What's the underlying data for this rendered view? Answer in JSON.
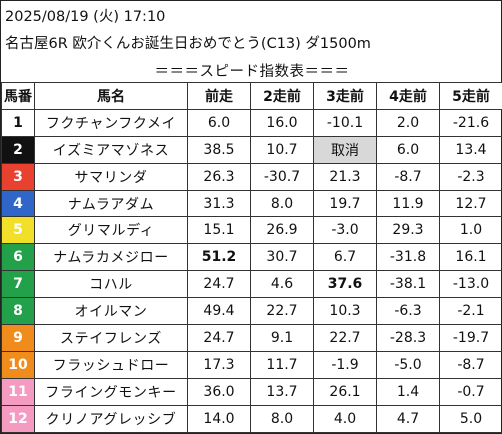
{
  "header": {
    "date_line": "2025/08/19 (火) 17:10",
    "race_line": "名古屋6R 欧介くんお誕生日おめでとう(C13) ダ1500m",
    "subtitle": "＝＝＝スピード指数表＝＝＝"
  },
  "columns": [
    "馬番",
    "馬名",
    "前走",
    "2走前",
    "3走前",
    "4走前",
    "5走前"
  ],
  "colors": {
    "frame_1": "#ffffff",
    "frame_2": "#111111",
    "frame_3": "#e8412f",
    "frame_4": "#2f66c8",
    "frame_5": "#f1df2a",
    "frame_6": "#23a04a",
    "frame_7": "#f08c1c",
    "frame_8": "#f59ac0",
    "highlight_red": "#cc0000",
    "highlight_blue": "#1a3cff",
    "cancel_bg": "#d8d8d8"
  },
  "rows": [
    {
      "no": "1",
      "frame": 1,
      "name": "フクチャンフクメイ",
      "v": [
        "6.0",
        "16.0",
        "-10.1",
        "2.0",
        "-21.6"
      ],
      "s": [
        "",
        "",
        "",
        "",
        ""
      ]
    },
    {
      "no": "2",
      "frame": 2,
      "name": "イズミアマゾネス",
      "v": [
        "38.5",
        "10.7",
        "取消",
        "6.0",
        "13.4"
      ],
      "s": [
        "red",
        "",
        "cancel",
        "",
        ""
      ]
    },
    {
      "no": "3",
      "frame": 3,
      "name": "サマリンダ",
      "v": [
        "26.3",
        "-30.7",
        "21.3",
        "-8.7",
        "-2.3"
      ],
      "s": [
        "",
        "",
        "",
        "",
        ""
      ]
    },
    {
      "no": "4",
      "frame": 4,
      "name": "ナムラアダム",
      "v": [
        "31.3",
        "8.0",
        "19.7",
        "11.9",
        "12.7"
      ],
      "s": [
        "red",
        "",
        "",
        "",
        ""
      ]
    },
    {
      "no": "5",
      "frame": 5,
      "name": "グリマルディ",
      "v": [
        "15.1",
        "26.9",
        "-3.0",
        "29.3",
        "1.0"
      ],
      "s": [
        "",
        "blue",
        "",
        "blue",
        ""
      ]
    },
    {
      "no": "6",
      "frame": 6,
      "name": "ナムラカメジロー",
      "v": [
        "51.2",
        "30.7",
        "6.7",
        "-31.8",
        "16.1"
      ],
      "s": [
        "top",
        "blue",
        "",
        "",
        ""
      ]
    },
    {
      "no": "7",
      "frame": 7,
      "name": "コハル",
      "v": [
        "24.7",
        "4.6",
        "37.6",
        "-38.1",
        "-13.0"
      ],
      "s": [
        "",
        "",
        "best",
        "",
        ""
      ]
    },
    {
      "no": "8",
      "frame": 8,
      "name": "オイルマン",
      "v": [
        "49.4",
        "22.7",
        "10.3",
        "-6.3",
        "-2.1"
      ],
      "s": [
        "red",
        "",
        "",
        "",
        ""
      ]
    },
    {
      "no": "9",
      "frame": 9,
      "name": "ステイフレンズ",
      "v": [
        "24.7",
        "9.1",
        "22.7",
        "-28.3",
        "-19.7"
      ],
      "s": [
        "",
        "",
        "",
        "",
        ""
      ]
    },
    {
      "no": "10",
      "frame": 10,
      "name": "フラッシュドロー",
      "v": [
        "17.3",
        "11.7",
        "-1.9",
        "-5.0",
        "-8.7"
      ],
      "s": [
        "",
        "",
        "",
        "",
        ""
      ]
    },
    {
      "no": "11",
      "frame": 11,
      "name": "フライングモンキー",
      "v": [
        "36.0",
        "13.7",
        "26.1",
        "1.4",
        "-0.7"
      ],
      "s": [
        "red",
        "",
        "blue",
        "",
        ""
      ]
    },
    {
      "no": "12",
      "frame": 12,
      "name": "クリノアグレッシブ",
      "v": [
        "14.0",
        "8.0",
        "4.0",
        "4.7",
        "5.0"
      ],
      "s": [
        "",
        "",
        "",
        "",
        ""
      ]
    }
  ]
}
